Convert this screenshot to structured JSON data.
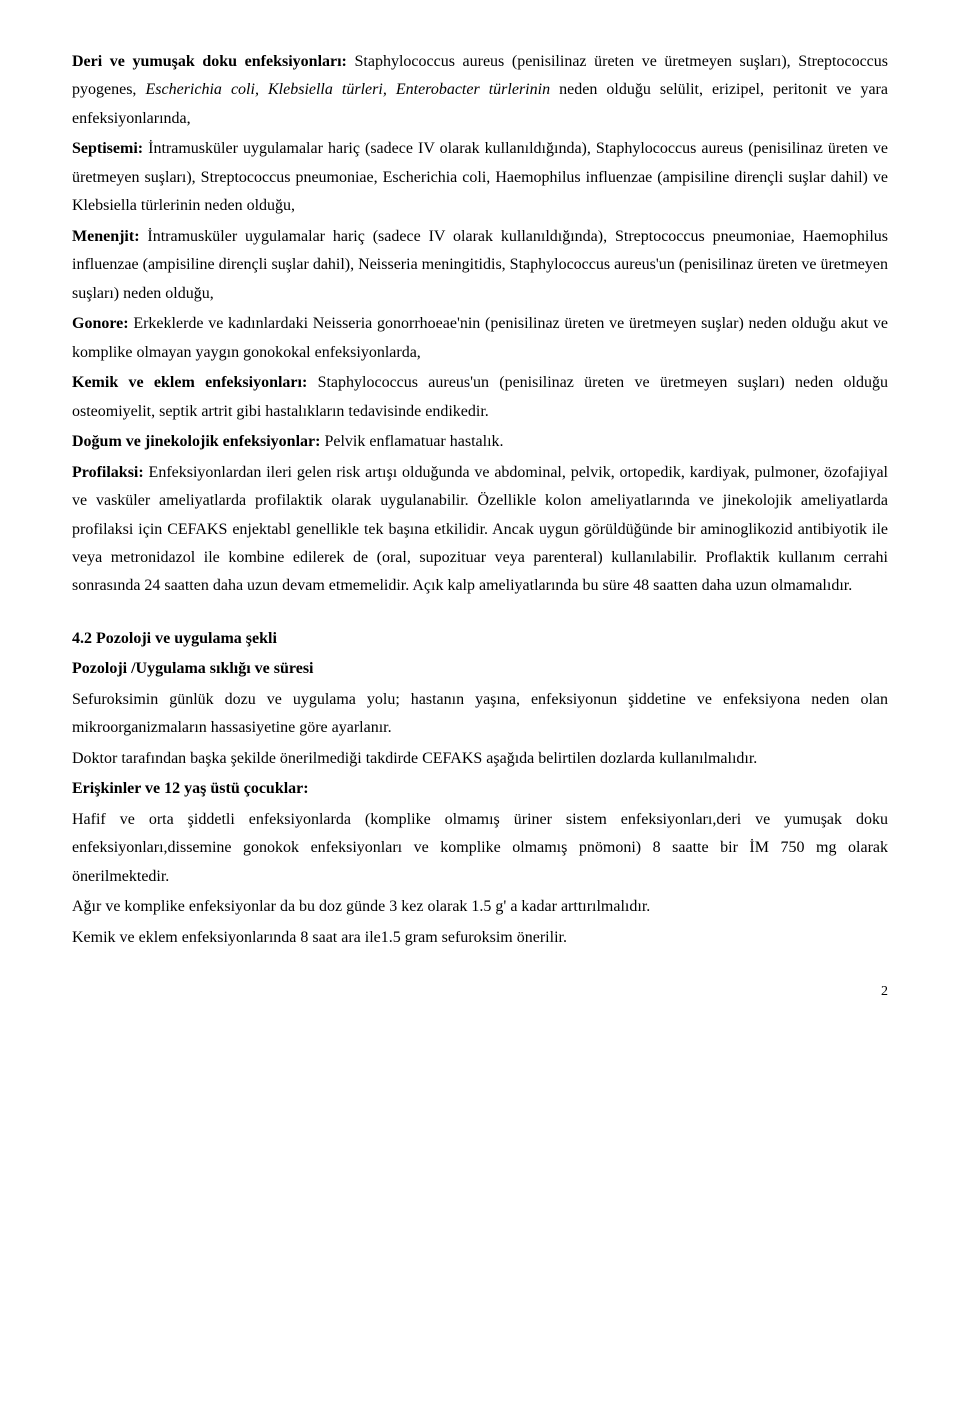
{
  "p1": {
    "lead": "Deri ve yumuşak doku enfeksiyonları:",
    "text1": " Staphylococcus aureus (penisilinaz üreten ve üretmeyen suşları), Streptococcus pyogenes, ",
    "italicPart": "Escherichia coli, Klebsiella türleri, Enterobacter türlerinin",
    "text2": " neden olduğu selülit, erizipel, peritonit ve yara enfeksiyonlarında,"
  },
  "p2": {
    "lead": "Septisemi:",
    "text": " İntramusküler uygulamalar hariç (sadece IV olarak kullanıldığında), Staphylococcus aureus (penisilinaz üreten ve üretmeyen suşları), Streptococcus pneumoniae, Escherichia coli, Haemophilus influenzae (ampisiline dirençli suşlar dahil) ve Klebsiella türlerinin neden olduğu,"
  },
  "p3": {
    "lead": "Menenjit:",
    "text": " İntramusküler uygulamalar hariç (sadece IV olarak kullanıldığında), Streptococcus pneumoniae, Haemophilus influenzae (ampisiline dirençli suşlar dahil), Neisseria meningitidis, Staphylococcus aureus'un (penisilinaz üreten ve üretmeyen suşları) neden olduğu,"
  },
  "p4": {
    "lead": "Gonore:",
    "text": " Erkeklerde ve kadınlardaki Neisseria gonorrhoeae'nin (penisilinaz üreten ve üretmeyen suşlar) neden olduğu akut ve komplike olmayan yaygın gonokokal enfeksiyonlarda,"
  },
  "p5": {
    "lead": "Kemik ve eklem enfeksiyonları:",
    "text": " Staphylococcus aureus'un  (penisilinaz üreten ve üretmeyen suşları) neden olduğu osteomiyelit, septik artrit gibi hastalıkların tedavisinde endikedir."
  },
  "p6": {
    "lead": "Doğum ve jinekolojik enfeksiyonlar:",
    "text": " Pelvik enflamatuar hastalık."
  },
  "p7": {
    "lead": "Profilaksi:",
    "text": " Enfeksiyonlardan ileri gelen risk artışı olduğunda ve abdominal, pelvik, ortopedik, kardiyak, pulmoner, özofajiyal ve vasküler ameliyatlarda profilaktik olarak uygulanabilir. Özellikle kolon ameliyatlarında ve jinekolojik ameliyatlarda profilaksi için CEFAKS enjektabl genellikle tek başına etkilidir. Ancak uygun görüldüğünde bir aminoglikozid antibiyotik ile veya metronidazol ile kombine edilerek de (oral, supozituar veya parenteral) kullanılabilir. Proflaktik kullanım cerrahi sonrasında 24 saatten daha uzun devam etmemelidir. Açık kalp ameliyatlarında bu süre 48 saatten daha uzun olmamalıdır."
  },
  "section42": {
    "title": "4.2 Pozoloji ve uygulama şekli",
    "sub": "Pozoloji /Uygulama sıklığı ve süresi"
  },
  "p8": "Sefuroksimin günlük dozu ve uygulama yolu; hastanın yaşına, enfeksiyonun şiddetine ve enfeksiyona neden olan mikroorganizmaların hassasiyetine göre ayarlanır.",
  "p9": "Doktor tarafından başka şekilde önerilmediği takdirde CEFAKS aşağıda belirtilen dozlarda kullanılmalıdır.",
  "p10": {
    "lead": "Erişkinler ve 12 yaş üstü çocuklar:"
  },
  "p11": "Hafif ve orta şiddetli enfeksiyonlarda (komplike olmamış üriner sistem enfeksiyonları,deri ve yumuşak doku enfeksiyonları,dissemine gonokok enfeksiyonları ve komplike olmamış pnömoni)  8 saatte bir  İM 750 mg olarak önerilmektedir.",
  "p12": "Ağır ve komplike enfeksiyonlar da  bu doz günde 3 kez olarak 1.5 g' a kadar arttırılmalıdır.",
  "p13": "Kemik ve eklem enfeksiyonlarında 8 saat ara ile1.5 gram sefuroksim önerilir.",
  "pageNumber": "2"
}
